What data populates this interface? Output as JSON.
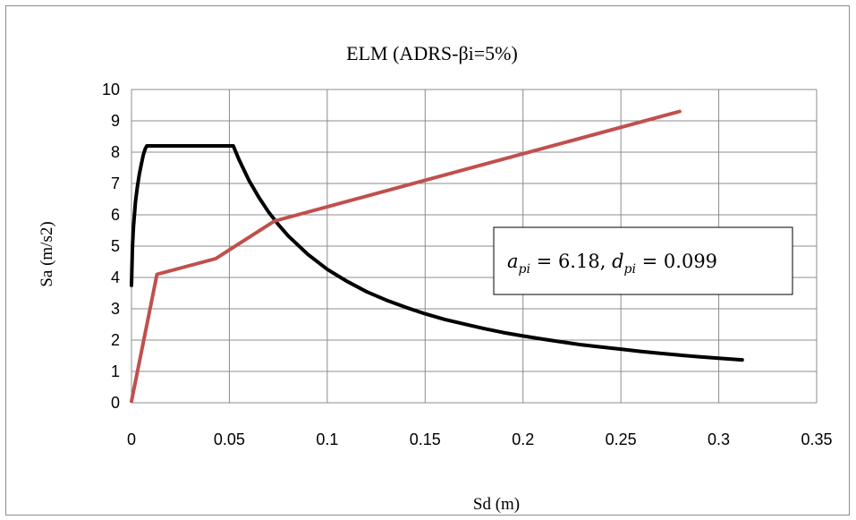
{
  "chart_data": {
    "type": "line",
    "title": "ELM (ADRS-βi=5%)",
    "xlabel": "Sd (m)",
    "ylabel": "Sa (m/s2)",
    "xlim": [
      0,
      0.35
    ],
    "ylim": [
      0,
      10
    ],
    "x_ticks": [
      "0",
      "0.05",
      "0.1",
      "0.15",
      "0.2",
      "0.25",
      "0.3",
      "0.35"
    ],
    "y_ticks": [
      "0",
      "1",
      "2",
      "3",
      "4",
      "5",
      "6",
      "7",
      "8",
      "9",
      "10"
    ],
    "grid": true,
    "legend": "none",
    "series": [
      {
        "color": "#000000",
        "points": [
          [
            0.0,
            3.75
          ],
          [
            0.0005,
            5.0
          ],
          [
            0.001,
            5.6
          ],
          [
            0.0015,
            6.0
          ],
          [
            0.002,
            6.4
          ],
          [
            0.003,
            6.9
          ],
          [
            0.004,
            7.3
          ],
          [
            0.005,
            7.6
          ],
          [
            0.006,
            7.9
          ],
          [
            0.007,
            8.1
          ],
          [
            0.0078,
            8.2
          ],
          [
            0.02,
            8.2
          ],
          [
            0.04,
            8.2
          ],
          [
            0.052,
            8.2
          ],
          [
            0.055,
            7.75
          ],
          [
            0.06,
            7.1
          ],
          [
            0.065,
            6.56
          ],
          [
            0.07,
            6.09
          ],
          [
            0.075,
            5.69
          ],
          [
            0.08,
            5.33
          ],
          [
            0.09,
            4.74
          ],
          [
            0.1,
            4.26
          ],
          [
            0.11,
            3.88
          ],
          [
            0.12,
            3.55
          ],
          [
            0.13,
            3.28
          ],
          [
            0.14,
            3.05
          ],
          [
            0.15,
            2.84
          ],
          [
            0.16,
            2.66
          ],
          [
            0.17,
            2.51
          ],
          [
            0.18,
            2.37
          ],
          [
            0.19,
            2.24
          ],
          [
            0.2,
            2.13
          ],
          [
            0.21,
            2.03
          ],
          [
            0.22,
            1.94
          ],
          [
            0.23,
            1.85
          ],
          [
            0.24,
            1.78
          ],
          [
            0.25,
            1.71
          ],
          [
            0.26,
            1.64
          ],
          [
            0.27,
            1.58
          ],
          [
            0.28,
            1.52
          ],
          [
            0.29,
            1.47
          ],
          [
            0.3,
            1.42
          ],
          [
            0.312,
            1.37
          ]
        ]
      },
      {
        "color": "#c0504d",
        "points": [
          [
            0.0,
            0.05
          ],
          [
            0.013,
            4.1
          ],
          [
            0.043,
            4.6
          ],
          [
            0.073,
            5.8
          ],
          [
            0.28,
            9.3
          ]
        ]
      }
    ],
    "annotation": {
      "a_symbol": "a",
      "a_sub": "pi",
      "a_value": "6.18",
      "d_symbol": "d",
      "d_sub": "pi",
      "d_value": "0.099"
    }
  }
}
